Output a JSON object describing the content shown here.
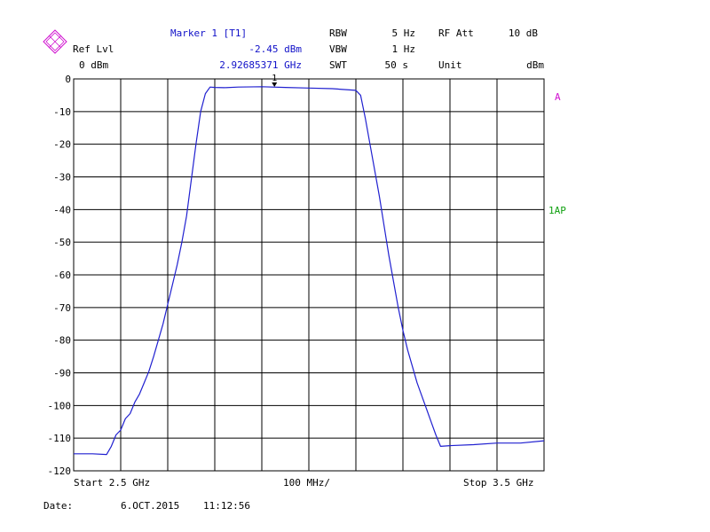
{
  "header": {
    "marker_title": "Marker 1 [T1]",
    "marker_level": "-2.45 dBm",
    "marker_freq": "2.92685371 GHz",
    "ref_lvl_label": "Ref Lvl",
    "ref_lvl_value": "0 dBm",
    "rbw_label": "RBW",
    "rbw_value": "5 Hz",
    "vbw_label": "VBW",
    "vbw_value": "1 Hz",
    "swt_label": "SWT",
    "swt_value": "50 s",
    "rf_att_label": "RF Att",
    "rf_att_value": "10 dB",
    "unit_label": "Unit",
    "unit_value": "dBm",
    "logo_text": "R&S"
  },
  "side_labels": {
    "trace": "A",
    "detector": "1AP"
  },
  "footer": {
    "start": "Start 2.5 GHz",
    "span": "100 MHz/",
    "stop": "Stop 3.5 GHz",
    "date_label": "Date:",
    "date_value": "6.OCT.2015",
    "time_value": "11:12:56"
  },
  "colors": {
    "trace": "#2020d0",
    "grid": "#000000",
    "marker": "#000000",
    "labels_blue": "#1010c8",
    "trace_label": "#d010d0",
    "detector_label": "#10a010"
  },
  "chart_data": {
    "type": "line",
    "title": "",
    "xlabel": "",
    "ylabel": "",
    "xlim": [
      2.5,
      3.5
    ],
    "ylim": [
      -120,
      0
    ],
    "x_unit": "GHz",
    "y_unit": "dBm",
    "grid": true,
    "yticks": [
      0,
      -10,
      -20,
      -30,
      -40,
      -50,
      -60,
      -70,
      -80,
      -90,
      -100,
      -110,
      -120
    ],
    "ytick_labels": [
      "0",
      "-10",
      "-20",
      "-30",
      "-40",
      "-50",
      "-60",
      "-70",
      "-80",
      "-90",
      "-100",
      "-110",
      "-120"
    ],
    "marker": {
      "label": "1",
      "x": 2.92685371,
      "y": -2.45
    },
    "series": [
      {
        "x": [
          2.5,
          2.54,
          2.57,
          2.58,
          2.59,
          2.6,
          2.61,
          2.62,
          2.63,
          2.64,
          2.65,
          2.66,
          2.67,
          2.68,
          2.69,
          2.7,
          2.71,
          2.72,
          2.73,
          2.74,
          2.75,
          2.76,
          2.77,
          2.78,
          2.79,
          2.8,
          2.82,
          2.85,
          2.9,
          2.95,
          3.0,
          3.05,
          3.1,
          3.11,
          3.12,
          3.13,
          3.14,
          3.15,
          3.16,
          3.17,
          3.18,
          3.19,
          3.2,
          3.21,
          3.22,
          3.23,
          3.24,
          3.25,
          3.26,
          3.27,
          3.28,
          3.3,
          3.35,
          3.4,
          3.45,
          3.5
        ],
        "y": [
          -114.8,
          -114.8,
          -115.0,
          -112.5,
          -109.0,
          -107.5,
          -104.0,
          -102.5,
          -99.0,
          -96.5,
          -93.0,
          -89.5,
          -85.0,
          -80.0,
          -75.0,
          -69.0,
          -63.0,
          -57.0,
          -50.0,
          -42.0,
          -31.0,
          -20.0,
          -10.0,
          -4.5,
          -2.5,
          -2.6,
          -2.7,
          -2.5,
          -2.4,
          -2.6,
          -2.8,
          -3.0,
          -3.5,
          -5.0,
          -12.0,
          -20.0,
          -28.0,
          -36.0,
          -45.0,
          -54.0,
          -62.0,
          -70.0,
          -77.0,
          -83.0,
          -88.0,
          -93.0,
          -97.0,
          -101.0,
          -105.0,
          -109.0,
          -112.5,
          -112.3,
          -112.0,
          -111.5,
          -111.5,
          -110.8
        ]
      }
    ]
  }
}
